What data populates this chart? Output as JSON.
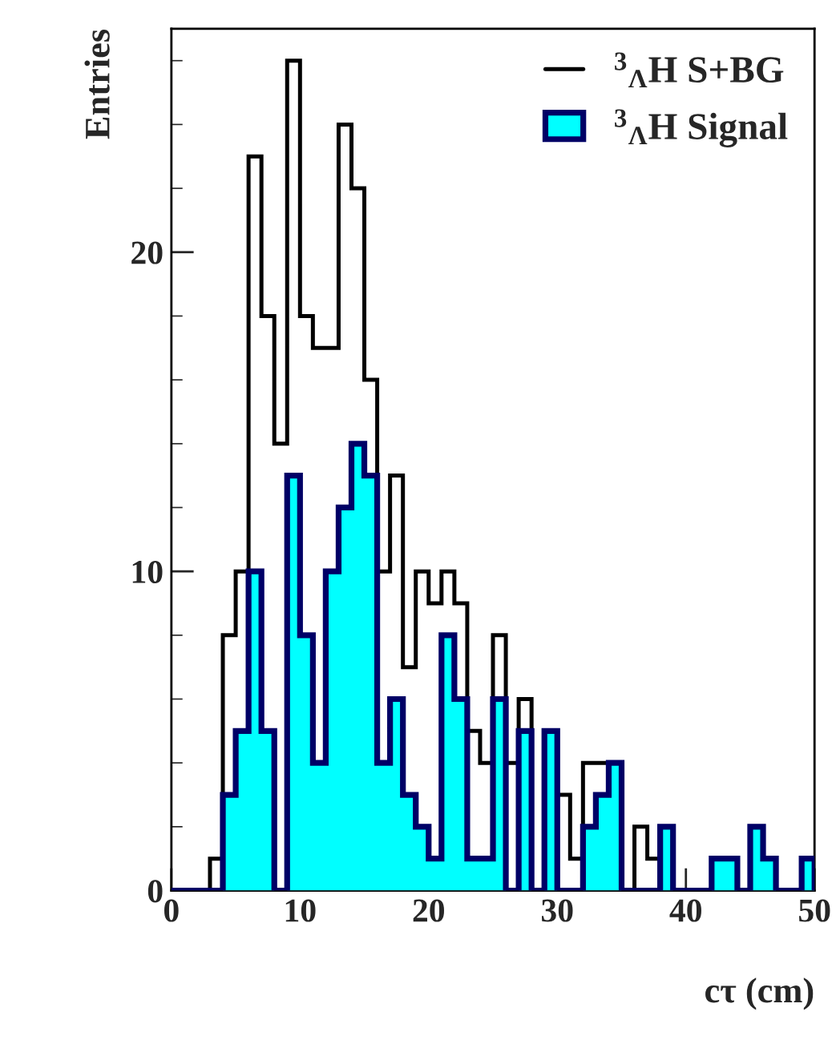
{
  "chart_data": {
    "type": "histogram",
    "xlabel": "cτ (cm)",
    "ylabel": "Entries",
    "bins": [
      0,
      1,
      2,
      3,
      4,
      5,
      6,
      7,
      8,
      9,
      10,
      11,
      12,
      13,
      14,
      15,
      16,
      17,
      18,
      19,
      20,
      21,
      22,
      23,
      24,
      25,
      26,
      27,
      28,
      29,
      30,
      31,
      32,
      33,
      34,
      35,
      36,
      37,
      38,
      39,
      40,
      41,
      42,
      43,
      44,
      45,
      46,
      47,
      48,
      49,
      50
    ],
    "series": [
      {
        "name": "$^{3}$$_{Λ}$H S+BG",
        "color": "#000000",
        "values": [
          0,
          0,
          0,
          1,
          8,
          10,
          23,
          18,
          14,
          26,
          18,
          17,
          17,
          24,
          22,
          16,
          10,
          13,
          7,
          10,
          9,
          10,
          9,
          5,
          4,
          8,
          4,
          6,
          0,
          5,
          3,
          1,
          4,
          4,
          4,
          0,
          2,
          1,
          2,
          0,
          0,
          0,
          1,
          1,
          0,
          2,
          1,
          0,
          0,
          1
        ]
      },
      {
        "name": "$^{3}$$_{Λ}$H Signal",
        "color": "#00ffff",
        "values": [
          0,
          0,
          0,
          0,
          3,
          5,
          10,
          5,
          0,
          13,
          8,
          4,
          10,
          12,
          14,
          13,
          4,
          6,
          3,
          2,
          1,
          8,
          6,
          1,
          1,
          6,
          0,
          5,
          0,
          5,
          0,
          0,
          2,
          3,
          4,
          0,
          0,
          0,
          2,
          0,
          0,
          0,
          1,
          1,
          0,
          2,
          1,
          0,
          0,
          1
        ]
      }
    ],
    "xlim": [
      0,
      50
    ],
    "ylim": [
      0,
      27
    ],
    "xticks": [
      0,
      10,
      20,
      30,
      40,
      50
    ],
    "yticks": [
      0,
      10,
      20
    ],
    "grid": false,
    "legend": "top right"
  }
}
